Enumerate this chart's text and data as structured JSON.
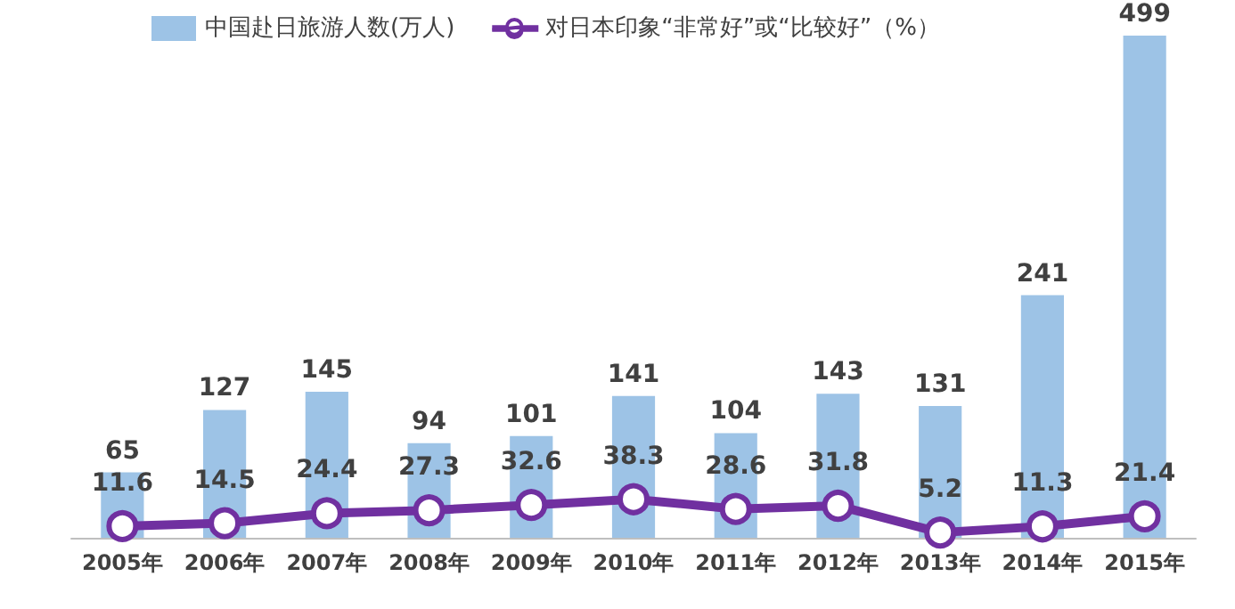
{
  "chart_data": {
    "type": "bar",
    "categories": [
      "2005年",
      "2006年",
      "2007年",
      "2008年",
      "2009年",
      "2010年",
      "2011年",
      "2012年",
      "2013年",
      "2014年",
      "2015年"
    ],
    "series": [
      {
        "name": "中国赴日旅游人数(万人)",
        "color": "#9dc3e6",
        "values": [
          65,
          127,
          145,
          94,
          101,
          141,
          104,
          143,
          131,
          241,
          499
        ]
      },
      {
        "name": "对日本印象“非常好”或“比较好”（%）",
        "type": "line",
        "color": "#7030a0",
        "values": [
          11.6,
          14.5,
          24.4,
          27.3,
          32.6,
          38.3,
          28.6,
          31.8,
          5.2,
          11.3,
          21.4
        ]
      }
    ],
    "data_labels": true,
    "legend": "top",
    "marker": "circle"
  }
}
